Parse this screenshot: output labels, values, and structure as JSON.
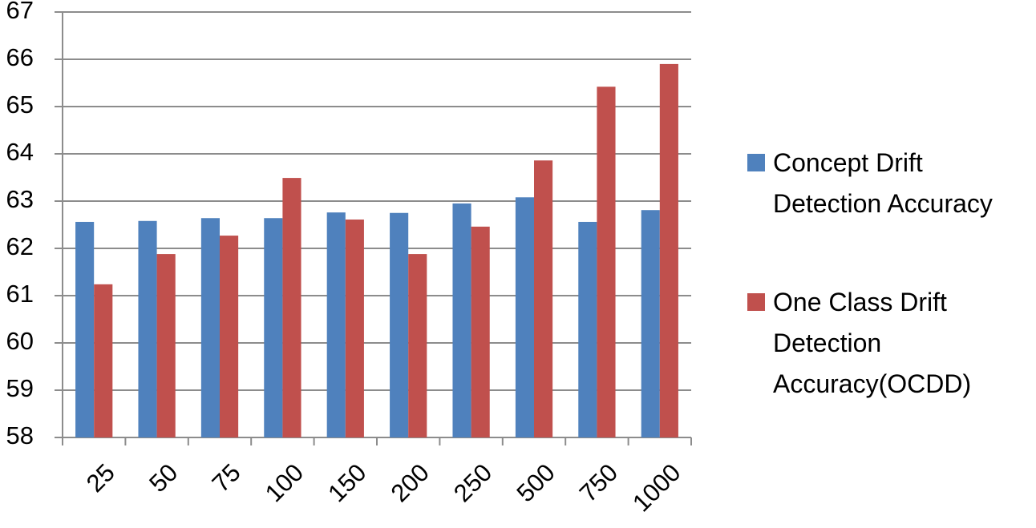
{
  "chart_data": {
    "type": "bar",
    "categories": [
      "25",
      "50",
      "75",
      "100",
      "150",
      "200",
      "250",
      "500",
      "750",
      "1000"
    ],
    "series": [
      {
        "name": "Concept Drift Detection Accuracy",
        "color": "#4f81bd",
        "values": [
          62.56,
          62.58,
          62.64,
          62.64,
          62.76,
          62.75,
          62.95,
          63.08,
          62.56,
          62.81
        ]
      },
      {
        "name": "One Class Drift Detection Accuracy(OCDD)",
        "color": "#c0504d",
        "values": [
          61.24,
          61.88,
          62.27,
          63.49,
          62.61,
          61.88,
          62.46,
          63.86,
          65.42,
          65.9
        ]
      }
    ],
    "ylim": [
      58,
      67
    ],
    "yticks": [
      58,
      59,
      60,
      61,
      62,
      63,
      64,
      65,
      66,
      67
    ],
    "grid": true
  }
}
